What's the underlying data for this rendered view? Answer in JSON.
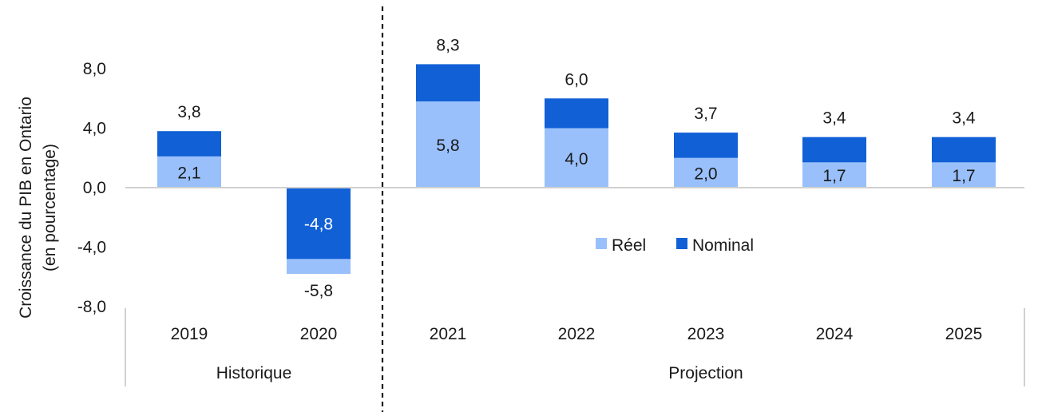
{
  "chart_data": {
    "type": "bar",
    "title": "",
    "ylabel_line1": "Croissance du PIB en Ontario",
    "ylabel_line2": "(en pourcentage)",
    "xlabel": "",
    "ylim": [
      -8,
      8
    ],
    "yticks": [
      8,
      4,
      0,
      -4,
      -8
    ],
    "ytick_labels": [
      "8,0",
      "4,0",
      "0,0",
      "-4,0",
      "-8,0"
    ],
    "categories": [
      "2019",
      "2020",
      "2021",
      "2022",
      "2023",
      "2024",
      "2025"
    ],
    "series": [
      {
        "name": "Réel",
        "color": "#99c0fb",
        "values": [
          2.1,
          -5.8,
          5.8,
          4.0,
          2.0,
          1.7,
          1.7
        ],
        "labels": [
          "2,1",
          "-5,8",
          "5,8",
          "4,0",
          "2,0",
          "1,7",
          "1,7"
        ]
      },
      {
        "name": "Nominal",
        "color": "#1160d6",
        "values": [
          3.8,
          -4.8,
          8.3,
          6.0,
          3.7,
          3.4,
          3.4
        ],
        "labels": [
          "3,8",
          "-4,8",
          "8,3",
          "6,0",
          "3,7",
          "3,4",
          "3,4"
        ]
      }
    ],
    "groups": [
      {
        "label": "Historique",
        "categories": [
          "2019",
          "2020"
        ]
      },
      {
        "label": "Projection",
        "categories": [
          "2021",
          "2022",
          "2023",
          "2024",
          "2025"
        ]
      }
    ],
    "legend_position": "center-right",
    "grid": false
  }
}
